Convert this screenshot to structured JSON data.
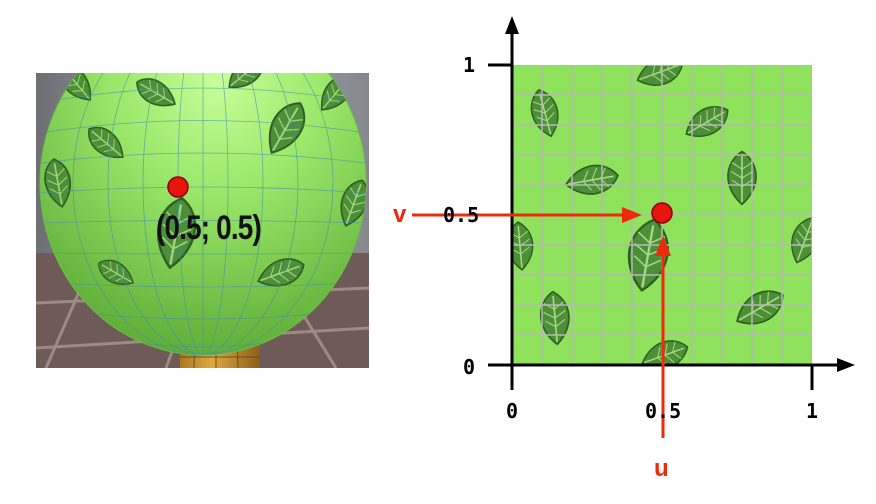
{
  "render_view": {
    "point_label": "(0.5; 0.5)"
  },
  "uv_map": {
    "y_ticks": {
      "one": "1",
      "half": "0.5",
      "zero": "0"
    },
    "x_ticks": {
      "zero": "0",
      "half": "0.5",
      "one": "1"
    },
    "u_label": "u",
    "v_label": "v",
    "point_u": 0.5,
    "point_v": 0.5
  },
  "colors": {
    "marker": "#e8140e",
    "arrow": "#ee2a0c",
    "texture_green": "#8fe25c",
    "leaf": "#4d8f38"
  }
}
